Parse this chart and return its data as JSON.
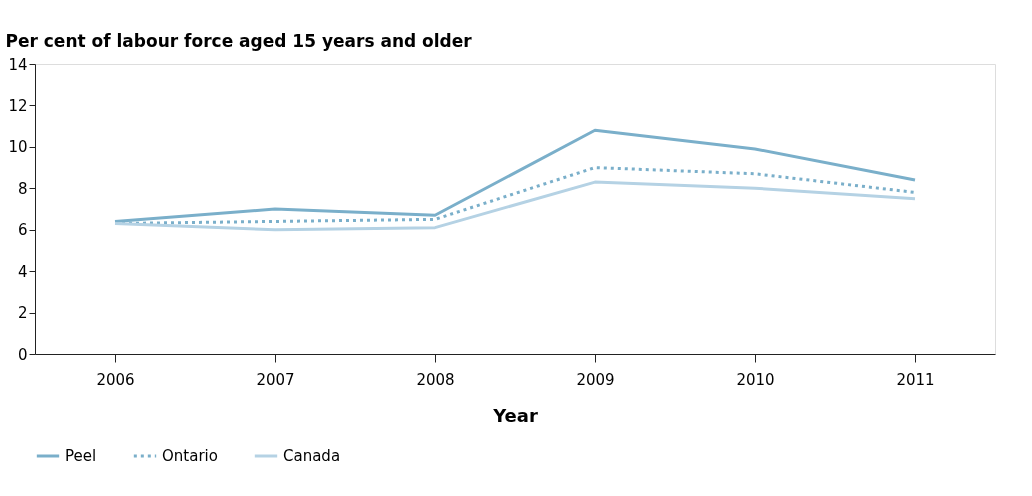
{
  "chart_data": {
    "type": "line",
    "xlabel": "Year",
    "ylabel": "Per cent of labour force aged 15 years and older",
    "categories": [
      "2006",
      "2007",
      "2008",
      "2009",
      "2010",
      "2011"
    ],
    "series": [
      {
        "name": "Peel",
        "color": "#7aafca",
        "line_style": "solid",
        "values": [
          6.4,
          7.0,
          6.7,
          10.8,
          9.9,
          8.4
        ]
      },
      {
        "name": "Ontario",
        "color": "#7aafca",
        "line_style": "dotted",
        "values": [
          6.3,
          6.4,
          6.5,
          9.0,
          8.7,
          7.8
        ]
      },
      {
        "name": "Canada",
        "color": "#b5d2e4",
        "line_style": "solid",
        "values": [
          6.3,
          6.0,
          6.1,
          8.3,
          8.0,
          7.5
        ]
      }
    ],
    "ylim": [
      0,
      14
    ],
    "yticks": [
      0,
      2,
      4,
      6,
      8,
      10,
      12,
      14
    ],
    "grid": false,
    "legend": "bottom",
    "marker": "none"
  }
}
